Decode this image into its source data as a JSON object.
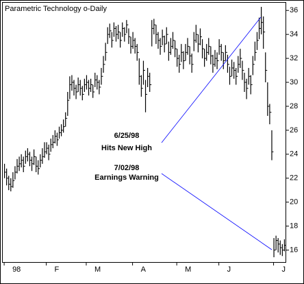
{
  "chart_data": {
    "type": "ohlc",
    "title": "Parametric Technology o-Daily",
    "annotations": [
      "6/25/98",
      "Hits New High",
      "7/02/98",
      "Earnings Warning"
    ],
    "color": "#000000",
    "annotation_color": "#0000ff",
    "xlim": [
      -1,
      134
    ],
    "xticks": [
      {
        "value": 0,
        "label": "98"
      },
      {
        "value": 20,
        "label": "F"
      },
      {
        "value": 39,
        "label": "M"
      },
      {
        "value": 61,
        "label": "A"
      },
      {
        "value": 82,
        "label": "M"
      },
      {
        "value": 102,
        "label": "J"
      },
      {
        "value": 128,
        "label": "J"
      }
    ],
    "ylim": [
      15,
      36.7
    ],
    "yticks": [
      16,
      18,
      20,
      22,
      24,
      26,
      28,
      30,
      32,
      34,
      36
    ],
    "high": [
      23.2,
      22.8,
      22.2,
      22.0,
      22.5,
      23.0,
      23.6,
      23.8,
      24.0,
      23.8,
      24.3,
      24.5,
      24.2,
      23.8,
      24.4,
      23.8,
      23.5,
      24.0,
      24.5,
      25.0,
      25.0,
      24.8,
      25.3,
      25.6,
      26.0,
      25.8,
      26.3,
      26.5,
      26.9,
      27.5,
      29.2,
      30.5,
      30.6,
      30.2,
      29.8,
      30.4,
      30.2,
      29.7,
      30.3,
      30.6,
      30.2,
      30.3,
      29.8,
      30.8,
      30.6,
      30.2,
      31.2,
      32.2,
      33.3,
      34.6,
      34.9,
      34.2,
      35.0,
      34.7,
      34.8,
      34.2,
      35.0,
      34.6,
      35.2,
      34.5,
      33.8,
      34.2,
      33.7,
      33.2,
      32.0,
      30.6,
      31.8,
      30.2,
      31.2,
      30.8,
      35.2,
      35.3,
      34.8,
      34.2,
      33.7,
      34.4,
      33.9,
      34.6,
      33.4,
      33.7,
      34.2,
      33.5,
      32.8,
      32.3,
      33.2,
      32.6,
      33.2,
      33.7,
      33.0,
      32.4,
      34.2,
      34.8,
      34.0,
      34.5,
      33.6,
      32.8,
      33.2,
      33.7,
      33.0,
      32.3,
      32.7,
      32.5,
      33.6,
      33.2,
      32.5,
      33.1,
      32.3,
      31.3,
      31.9,
      31.7,
      31.2,
      32.2,
      32.8,
      31.8,
      30.8,
      30.3,
      31.2,
      30.6,
      32.2,
      33.4,
      34.2,
      35.4,
      36.3,
      35.5,
      32.5,
      30.0,
      28.2,
      26.0,
      17.0,
      17.2,
      17.0,
      16.8,
      16.5,
      16.9
    ],
    "low": [
      22.0,
      21.4,
      21.0,
      20.9,
      21.2,
      21.9,
      22.4,
      22.6,
      22.9,
      22.5,
      23.2,
      23.4,
      23.0,
      22.6,
      23.1,
      22.5,
      22.3,
      22.9,
      23.2,
      23.7,
      24.0,
      23.5,
      24.2,
      24.5,
      24.9,
      24.7,
      25.3,
      25.5,
      25.8,
      26.3,
      27.2,
      28.6,
      29.3,
      28.9,
      28.6,
      29.2,
      28.9,
      28.5,
      29.2,
      29.4,
      28.9,
      29.2,
      28.7,
      29.6,
      29.4,
      29.0,
      29.8,
      30.8,
      31.8,
      33.2,
      33.7,
      32.9,
      33.8,
      33.4,
      33.6,
      32.9,
      33.8,
      33.4,
      34.1,
      33.2,
      32.4,
      32.8,
      32.4,
      31.8,
      29.8,
      28.8,
      29.8,
      27.5,
      29.6,
      29.2,
      33.0,
      34.0,
      33.2,
      32.8,
      32.3,
      33.1,
      32.5,
      33.2,
      31.8,
      32.3,
      32.8,
      32.1,
      31.3,
      30.8,
      31.7,
      31.1,
      31.8,
      32.3,
      31.5,
      30.8,
      32.6,
      33.3,
      32.5,
      33.1,
      32.0,
      31.3,
      31.8,
      32.3,
      31.5,
      30.8,
      31.3,
      31.1,
      32.3,
      31.8,
      31.1,
      31.8,
      30.8,
      29.8,
      30.5,
      30.3,
      29.8,
      30.8,
      31.2,
      30.2,
      29.2,
      28.6,
      29.8,
      29.0,
      30.6,
      31.8,
      32.7,
      33.6,
      34.0,
      32.8,
      30.0,
      27.2,
      26.5,
      23.5,
      15.4,
      16.0,
      15.8,
      15.6,
      15.5,
      15.9
    ],
    "close": [
      22.5,
      22.0,
      21.5,
      21.3,
      21.8,
      22.5,
      23.0,
      23.2,
      23.5,
      23.0,
      23.8,
      24.0,
      23.5,
      23.2,
      23.8,
      23.0,
      22.8,
      23.5,
      23.8,
      24.2,
      24.5,
      24.0,
      24.8,
      25.0,
      25.5,
      25.2,
      25.8,
      26.0,
      26.3,
      27.0,
      28.5,
      29.8,
      30.0,
      29.5,
      29.2,
      29.8,
      29.5,
      29.0,
      29.8,
      30.0,
      29.5,
      29.8,
      29.2,
      30.2,
      30.0,
      29.6,
      30.5,
      31.5,
      32.5,
      34.0,
      34.3,
      33.5,
      34.5,
      34.0,
      34.2,
      33.5,
      34.5,
      34.0,
      34.8,
      33.8,
      33.0,
      33.5,
      33.0,
      32.5,
      30.5,
      29.5,
      31.0,
      29.0,
      30.5,
      29.8,
      34.5,
      34.8,
      34.0,
      33.5,
      33.0,
      33.8,
      33.2,
      34.0,
      32.5,
      33.0,
      33.5,
      32.8,
      32.0,
      31.5,
      32.5,
      31.8,
      32.5,
      33.0,
      32.2,
      31.5,
      33.5,
      34.0,
      33.2,
      33.8,
      32.8,
      32.0,
      32.5,
      33.0,
      32.2,
      31.5,
      32.0,
      31.8,
      33.0,
      32.5,
      31.8,
      32.5,
      31.5,
      30.5,
      31.2,
      31.0,
      30.5,
      31.5,
      32.0,
      31.0,
      30.0,
      29.5,
      30.5,
      29.8,
      31.5,
      32.5,
      33.5,
      34.5,
      35.0,
      34.2,
      31.0,
      28.0,
      27.5,
      24.2,
      16.0,
      16.8,
      16.5,
      16.2,
      16.0,
      16.4
    ]
  }
}
